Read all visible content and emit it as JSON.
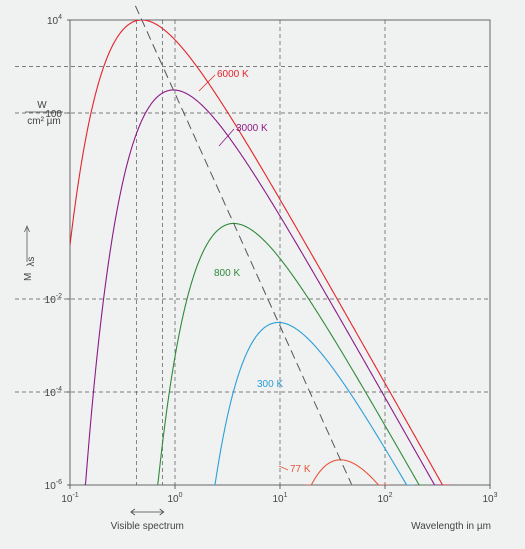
{
  "chart_data": {
    "type": "line",
    "title": "",
    "xlabel": "Wavelength in µm",
    "ylabel": "M",
    "ylabel_subscript": "λs",
    "y_unit_numerator": "W",
    "y_unit_denominator": "cm² µm",
    "xscale": "log",
    "yscale": "log",
    "xlim": [
      0.1,
      1000
    ],
    "ylim": [
      1e-06,
      10000
    ],
    "x_ticks": [
      {
        "base": "10",
        "exp": "-1"
      },
      {
        "base": "10",
        "exp": "0"
      },
      {
        "base": "10",
        "exp": "1"
      },
      {
        "base": "10",
        "exp": "2"
      },
      {
        "base": "10",
        "exp": "3"
      }
    ],
    "y_ticks": [
      {
        "base": "10",
        "exp": "-6"
      },
      {
        "base": "10",
        "exp": "-4"
      },
      {
        "base": "10",
        "exp": "-2"
      },
      {
        "base": "100",
        "exp": ""
      },
      {
        "base": "10",
        "exp": "4"
      }
    ],
    "gridlines_y": [
      0.0001,
      0.01,
      100,
      1000
    ],
    "gridlines_x": [
      0.43,
      0.76,
      1,
      10,
      100
    ],
    "visible_spectrum": {
      "label": "Visible spectrum",
      "from": 0.38,
      "to": 0.78
    },
    "series": [
      {
        "name": "6000 K",
        "temperature": 6000,
        "color": "#e3242b"
      },
      {
        "name": "3000 K",
        "temperature": 3000,
        "color": "#8b1a89"
      },
      {
        "name": "800 K",
        "temperature": 800,
        "color": "#2e8b3a"
      },
      {
        "name": "300 K",
        "temperature": 300,
        "color": "#2b9fd9"
      },
      {
        "name": "77 K",
        "temperature": 77,
        "color": "#e8553a"
      }
    ],
    "wien_line": {
      "style": "dashed",
      "color": "#555555"
    }
  }
}
